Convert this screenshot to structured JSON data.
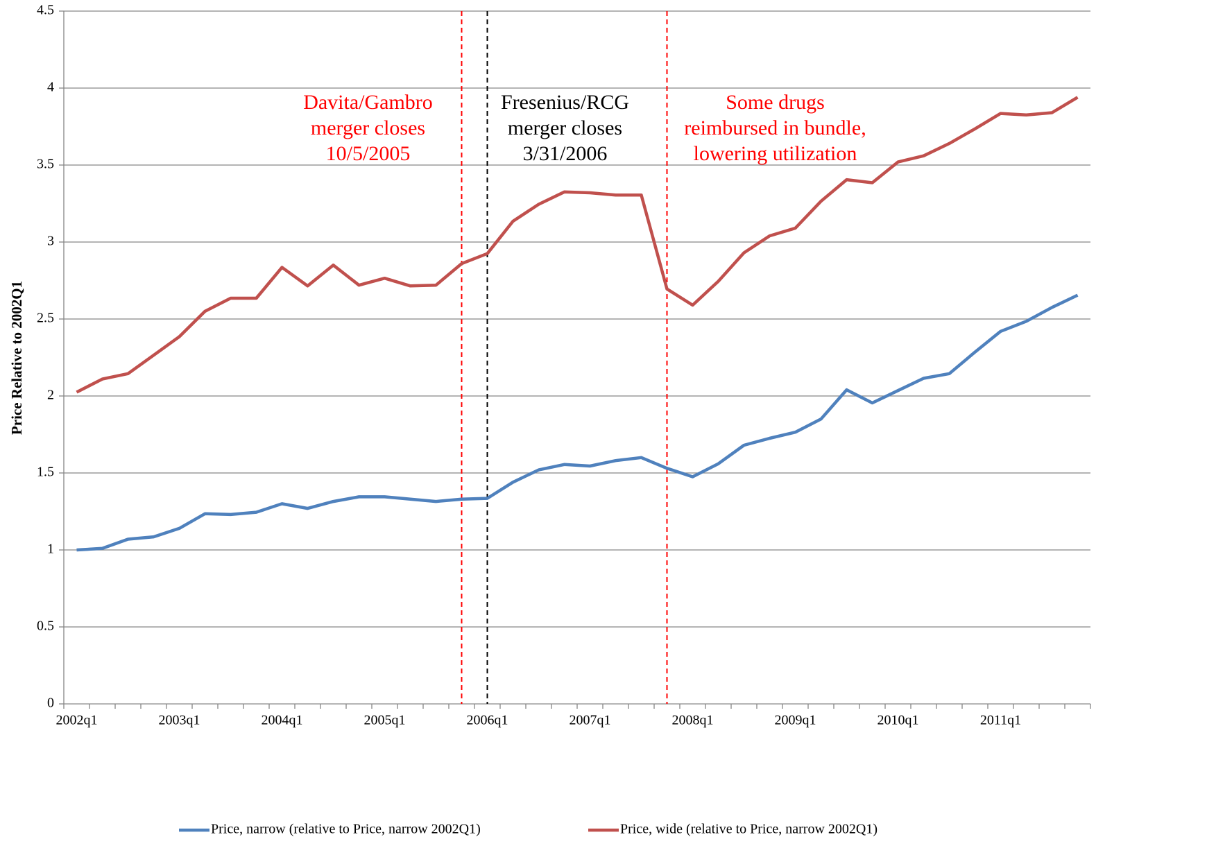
{
  "chart_data": {
    "type": "line",
    "y_label": "Price Relative to 2002Q1",
    "categories": [
      "2002q1",
      null,
      null,
      null,
      "2003q1",
      null,
      null,
      null,
      "2004q1",
      null,
      null,
      null,
      "2005q1",
      null,
      null,
      null,
      "2006q1",
      null,
      null,
      null,
      "2007q1",
      null,
      null,
      null,
      "2008q1",
      null,
      null,
      null,
      "2009q1",
      null,
      null,
      null,
      "2010q1",
      null,
      null,
      null,
      "2011q1",
      null,
      null,
      null
    ],
    "series": [
      {
        "name": "Price, narrow (relative to Price, narrow 2002Q1)",
        "color": "#4f81bd",
        "values": [
          1.0,
          1.01,
          1.07,
          1.085,
          1.14,
          1.235,
          1.23,
          1.245,
          1.3,
          1.27,
          1.315,
          1.345,
          1.345,
          1.33,
          1.315,
          1.33,
          1.335,
          1.44,
          1.52,
          1.555,
          1.545,
          1.58,
          1.6,
          1.53,
          1.475,
          1.56,
          1.68,
          1.725,
          1.765,
          1.85,
          2.04,
          1.955,
          2.035,
          2.115,
          2.145,
          2.285,
          2.42,
          2.485,
          2.575,
          2.655
        ]
      },
      {
        "name": "Price, wide (relative to Price, narrow 2002Q1)",
        "color": "#c0504d",
        "values": [
          2.025,
          2.11,
          2.145,
          2.265,
          2.385,
          2.55,
          2.635,
          2.635,
          2.835,
          2.715,
          2.85,
          2.72,
          2.765,
          2.715,
          2.72,
          2.86,
          2.925,
          3.135,
          3.245,
          3.325,
          3.32,
          3.305,
          3.305,
          2.695,
          2.59,
          2.745,
          2.93,
          3.04,
          3.09,
          3.265,
          3.405,
          3.385,
          3.52,
          3.56,
          3.64,
          3.735,
          3.835,
          3.825,
          3.84,
          3.94
        ]
      }
    ],
    "ylim": [
      0,
      4.5
    ],
    "yticks": [
      0,
      0.5,
      1,
      1.5,
      2,
      2.5,
      3,
      3.5,
      4,
      4.5
    ],
    "grid": true,
    "legend": "bottom",
    "annotations": [
      {
        "x": 15,
        "color": "#ff0000",
        "lines": [
          "Davita/Gambro",
          "merger closes",
          "10/5/2005"
        ]
      },
      {
        "x": 16,
        "color": "#000000",
        "lines": [
          "Fresenius/RCG",
          "merger closes",
          "3/31/2006"
        ]
      },
      {
        "x": 23,
        "color": "#ff0000",
        "lines": [
          "Some drugs",
          "reimbursed in bundle,",
          "lowering utilization"
        ]
      }
    ]
  }
}
